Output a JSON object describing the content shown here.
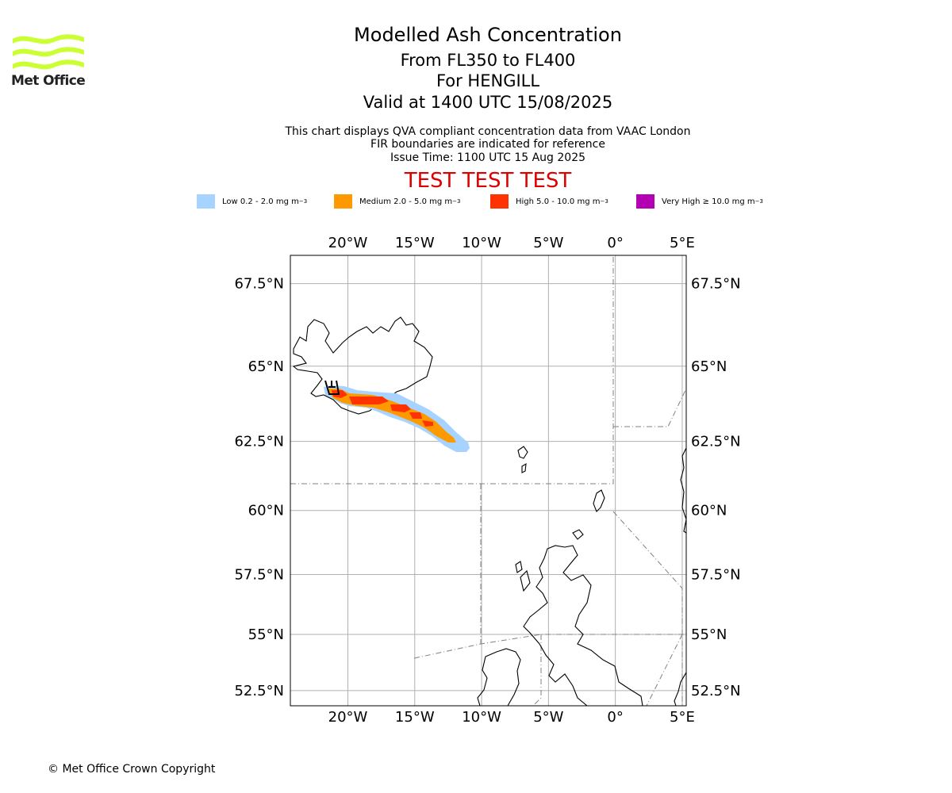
{
  "logo": {
    "text": "Met Office",
    "color": "#ccff33"
  },
  "header": {
    "title": "Modelled Ash Concentration",
    "levels": "From FL350 to FL400",
    "volcano": "For HENGILL",
    "valid": "Valid at 1400 UTC 15/08/2025",
    "info_line1": "This chart displays QVA compliant concentration data from VAAC London",
    "info_line2": "FIR boundaries are indicated for reference",
    "info_line3": "Issue Time: 1100 UTC 15 Aug 2025",
    "test_banner": "TEST TEST TEST"
  },
  "legend": [
    {
      "label": "Low 0.2 - 2.0 mg m",
      "color": "#a6d3ff"
    },
    {
      "label": "Medium 2.0 - 5.0 mg m",
      "color": "#ff9900"
    },
    {
      "label": "High 5.0 - 10.0 mg m",
      "color": "#ff3300"
    },
    {
      "label": "Very High ≥ 10.0 mg m",
      "color": "#b300b3"
    }
  ],
  "legend_unit_exp": "−3",
  "map": {
    "lon_range": [
      -24.3,
      5.3
    ],
    "lat_range": [
      51.8,
      68.3
    ],
    "lon_ticks": [
      {
        "v": -20,
        "label": "20°W"
      },
      {
        "v": -15,
        "label": "15°W"
      },
      {
        "v": -10,
        "label": "10°W"
      },
      {
        "v": -5,
        "label": "5°W"
      },
      {
        "v": 0,
        "label": "0°"
      },
      {
        "v": 5,
        "label": "5°E"
      }
    ],
    "lat_ticks": [
      {
        "v": 67.5,
        "label": "67.5°N"
      },
      {
        "v": 65,
        "label": "65°N"
      },
      {
        "v": 62.5,
        "label": "62.5°N"
      },
      {
        "v": 60,
        "label": "60°N"
      },
      {
        "v": 57.5,
        "label": "57.5°N"
      },
      {
        "v": 55,
        "label": "55°N"
      },
      {
        "v": 52.5,
        "label": "52.5°N"
      }
    ],
    "grid_color": "#b0b0b0",
    "volcano_marker": "hengill-volcano-symbol"
  },
  "footer": {
    "copyright": "© Met Office Crown Copyright"
  }
}
